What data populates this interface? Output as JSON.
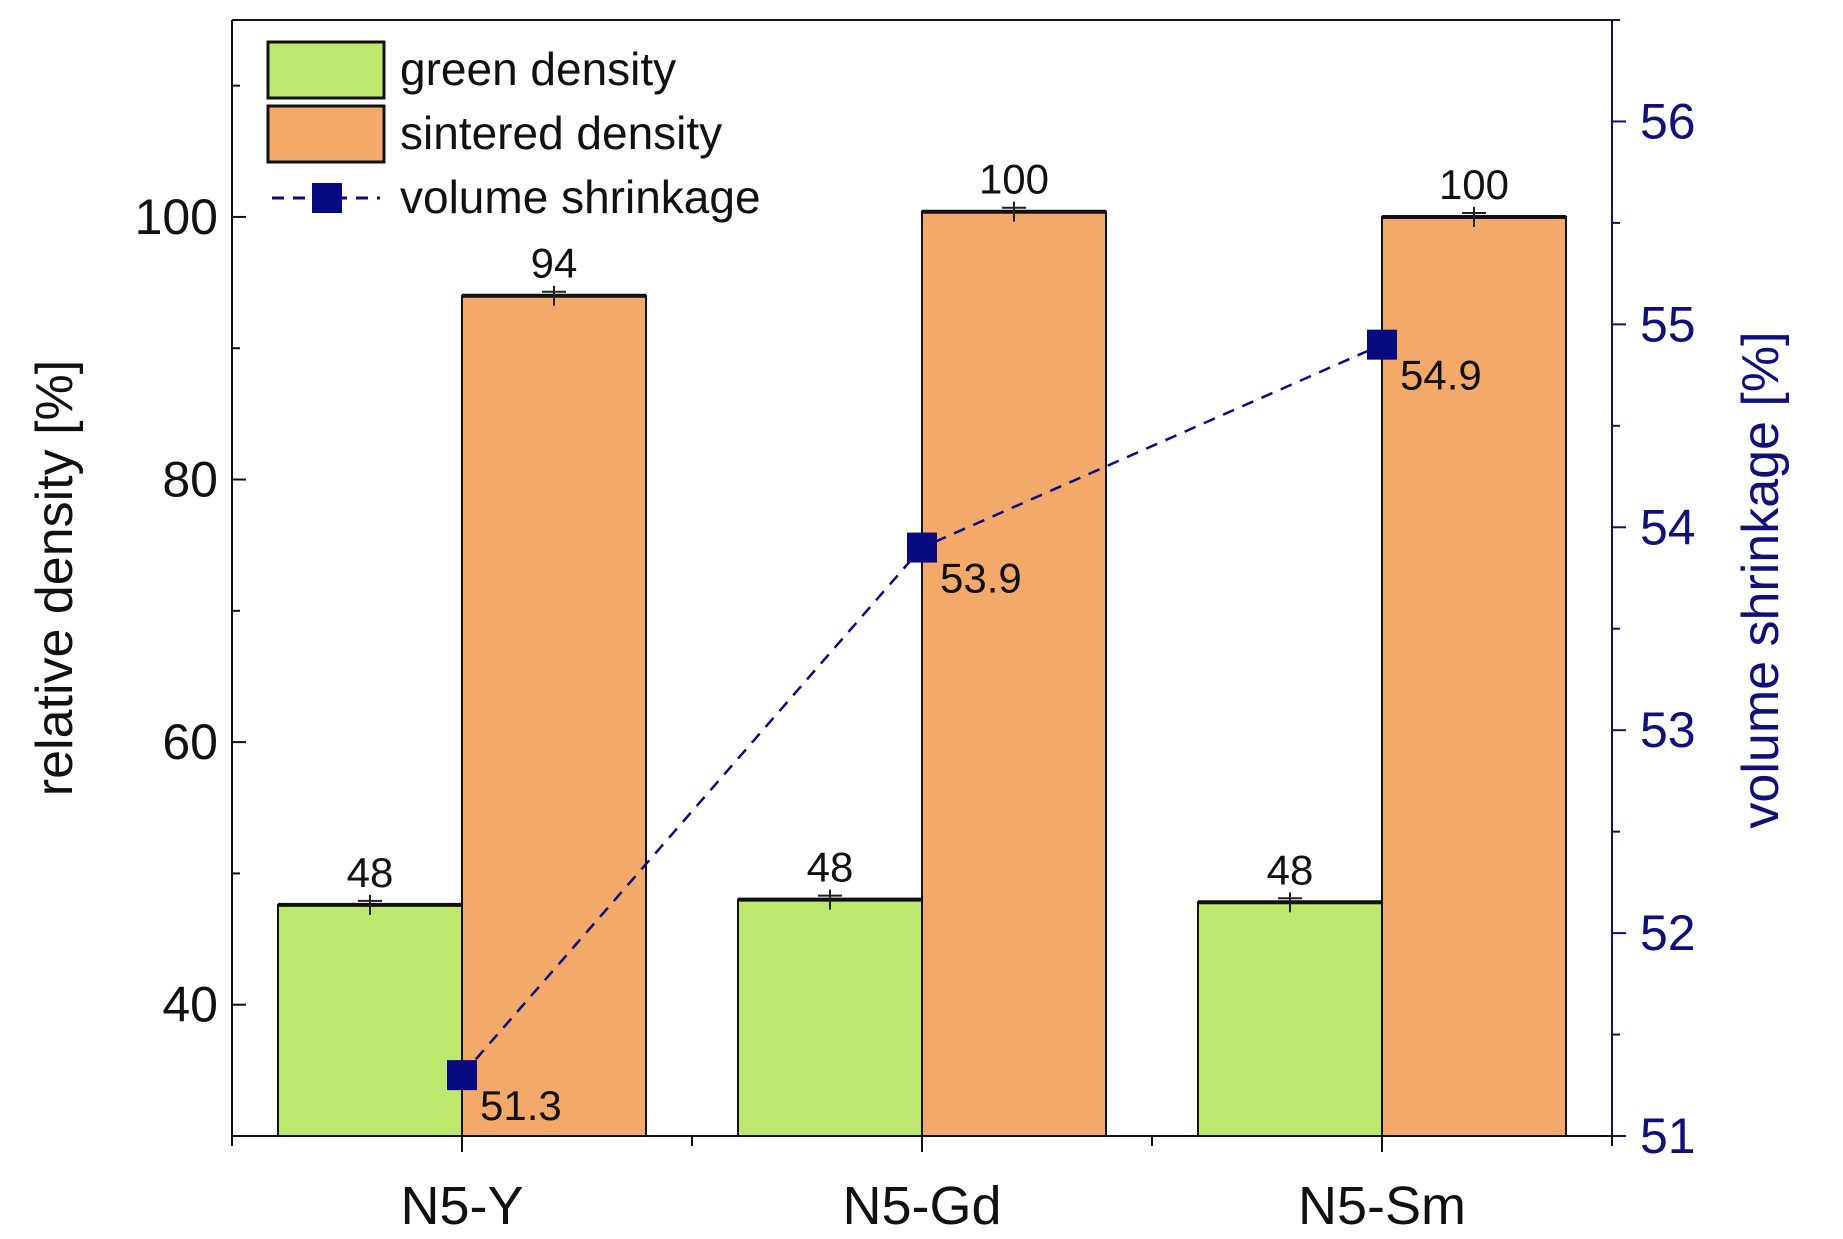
{
  "chart_data": {
    "type": "bar",
    "categories": [
      "N5-Y",
      "N5-Gd",
      "N5-Sm"
    ],
    "series": [
      {
        "name": "green density",
        "type": "bar",
        "axis": "left",
        "values": [
          47.6,
          48.0,
          47.8
        ],
        "labels": [
          "48",
          "48",
          "48"
        ],
        "color": "#bde86d"
      },
      {
        "name": "sintered density",
        "type": "bar",
        "axis": "left",
        "values": [
          94.0,
          100.4,
          100.0
        ],
        "labels": [
          "94",
          "100",
          "100"
        ],
        "color": "#f2a96a"
      },
      {
        "name": "volume shrinkage",
        "type": "line",
        "axis": "right",
        "line_style": "dashed",
        "marker": "square",
        "values": [
          51.3,
          53.9,
          54.9
        ],
        "labels": [
          "51.3",
          "53.9",
          "54.9"
        ],
        "color": "#0a0a80"
      }
    ],
    "ylabel": "relative density [%]",
    "ylabel_right": "volume shrinkage [%]",
    "ylim": [
      30,
      115
    ],
    "ylim_right": [
      51,
      56.5
    ],
    "yticks": [
      40,
      60,
      80,
      100
    ],
    "yticks_right": [
      51,
      52,
      53,
      54,
      55,
      56
    ],
    "legend": "top-left",
    "grid": false
  }
}
